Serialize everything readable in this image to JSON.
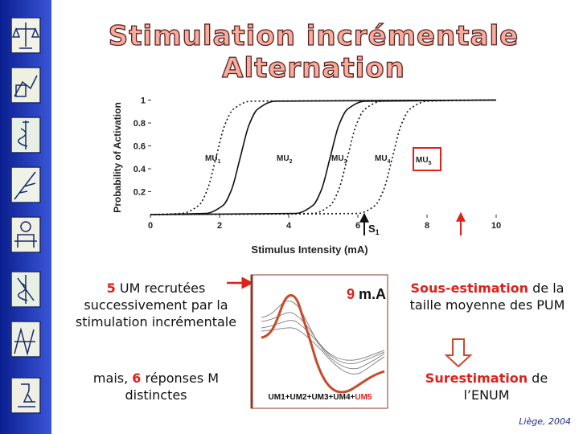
{
  "title": {
    "line1": "Stimulation incrémentale",
    "line2": "Alternation"
  },
  "chart_data": {
    "type": "line",
    "xlabel": "Stimulus Intensity (mA)",
    "ylabel": "Probability of Activation",
    "annotation": {
      "text": "S",
      "subscript": "1"
    },
    "xlim": [
      0,
      10
    ],
    "xticks": [
      0,
      2,
      4,
      6,
      8,
      10
    ],
    "ylim": [
      0,
      1
    ],
    "yticks": [
      0.2,
      0.4,
      0.6,
      0.8,
      1
    ],
    "color": "#111111",
    "series": [
      {
        "name": "MU",
        "subscript": "1",
        "dashed": true,
        "x": [
          0,
          0.9,
          1.4,
          1.65,
          1.9,
          2.15,
          2.4,
          2.9,
          10
        ],
        "values": [
          0,
          0.01,
          0.08,
          0.22,
          0.5,
          0.78,
          0.92,
          0.99,
          1
        ]
      },
      {
        "name": "MU",
        "subscript": "2",
        "dashed": false,
        "x": [
          0,
          1.6,
          2.1,
          2.35,
          2.6,
          2.85,
          3.1,
          3.6,
          10
        ],
        "values": [
          0,
          0.01,
          0.08,
          0.22,
          0.5,
          0.78,
          0.92,
          0.99,
          1
        ]
      },
      {
        "name": "MU",
        "subscript": "3",
        "dashed": false,
        "x": [
          0,
          4.2,
          4.7,
          4.95,
          5.2,
          5.45,
          5.7,
          6.2,
          10
        ],
        "values": [
          0,
          0.01,
          0.08,
          0.22,
          0.5,
          0.78,
          0.92,
          0.99,
          1
        ]
      },
      {
        "name": "MU",
        "subscript": "4",
        "dashed": true,
        "x": [
          0,
          4.7,
          5.2,
          5.45,
          5.7,
          5.95,
          6.2,
          6.7,
          10
        ],
        "values": [
          0,
          0.01,
          0.08,
          0.22,
          0.5,
          0.78,
          0.92,
          0.99,
          1
        ]
      },
      {
        "name": "MU",
        "subscript": "5",
        "dashed": true,
        "x": [
          0,
          6,
          6.5,
          6.75,
          7,
          7.25,
          7.5,
          8,
          10
        ],
        "values": [
          0,
          0.01,
          0.08,
          0.22,
          0.5,
          0.78,
          0.92,
          0.99,
          1
        ]
      }
    ]
  },
  "left": {
    "count1": "5",
    "text1": " UM recrutées successivement par la stimulation incrémentale",
    "prefix2": "mais, ",
    "count2": "6",
    "text2": " réponses M distinctes"
  },
  "middle": {
    "value": "9",
    "unit": " m.A",
    "label": "UM1+UM2+UM3+UM4+",
    "label_last": "UM5"
  },
  "right": {
    "emph1": "Sous-estimation",
    "text1": " de la taille moyenne des PUM",
    "emph2": "Surestimation",
    "text2": " de l’ENUM"
  },
  "footer": "Liège, 2004"
}
